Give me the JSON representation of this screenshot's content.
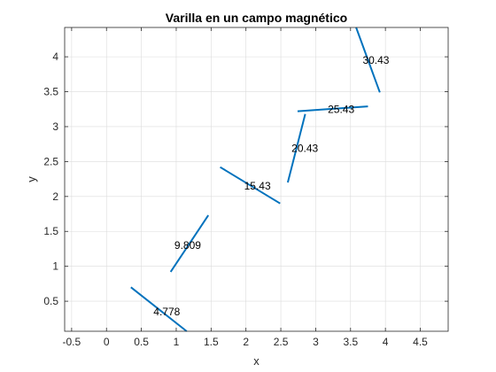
{
  "chart_data": {
    "type": "line",
    "title": "Varilla en un campo magnético",
    "xlabel": "x",
    "ylabel": "y",
    "xlim": [
      -0.6,
      4.9
    ],
    "ylim": [
      0.07,
      4.42
    ],
    "grid": true,
    "xticks": [
      -0.5,
      0,
      0.5,
      1,
      1.5,
      2,
      2.5,
      3,
      3.5,
      4,
      4.5
    ],
    "xtick_labels": [
      "-0.5",
      "0",
      "0.5",
      "1",
      "1.5",
      "2",
      "2.5",
      "3",
      "3.5",
      "4",
      "4.5"
    ],
    "yticks": [
      0.5,
      1,
      1.5,
      2,
      2.5,
      3,
      3.5,
      4
    ],
    "ytick_labels": [
      "0.5",
      "1",
      "1.5",
      "2",
      "2.5",
      "3",
      "3.5",
      "4"
    ],
    "line_color": "#0072BD",
    "series": [
      {
        "label": "4.778",
        "x": [
          0.35,
          1.15
        ],
        "y": [
          0.7,
          0.07
        ],
        "label_pos": [
          0.75,
          0.35
        ]
      },
      {
        "label": "9.809",
        "x": [
          0.92,
          1.46
        ],
        "y": [
          0.92,
          1.73
        ],
        "label_pos": [
          1.05,
          1.3
        ]
      },
      {
        "label": "15.43",
        "x": [
          1.63,
          2.49
        ],
        "y": [
          2.42,
          1.9
        ],
        "label_pos": [
          2.05,
          2.15
        ]
      },
      {
        "label": "20.43",
        "x": [
          2.6,
          2.85
        ],
        "y": [
          2.2,
          3.18
        ],
        "label_pos": [
          2.73,
          2.69
        ]
      },
      {
        "label": "25.43",
        "x": [
          2.74,
          3.75
        ],
        "y": [
          3.22,
          3.29
        ],
        "label_pos": [
          3.25,
          3.25
        ]
      },
      {
        "label": "30.43",
        "x": [
          3.58,
          3.92
        ],
        "y": [
          4.42,
          3.49
        ],
        "label_pos": [
          3.75,
          3.95
        ]
      }
    ]
  }
}
